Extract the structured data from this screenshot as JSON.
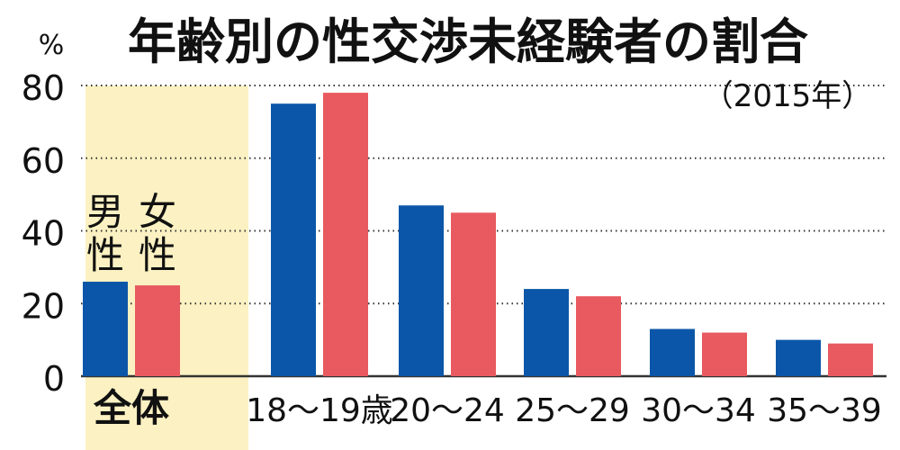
{
  "chart_data": {
    "type": "bar",
    "title": "年齢別の性交渉未経験者の割合",
    "subtitle": "（2015年）",
    "ylabel": "%",
    "ylim": [
      0,
      80
    ],
    "y_ticks": [
      0,
      20,
      40,
      60,
      80
    ],
    "grid": true,
    "grid_style": "dotted",
    "categories": [
      "全体",
      "18～19歳",
      "20～24",
      "25～29",
      "30～34",
      "35～39"
    ],
    "series": [
      {
        "name": "男性",
        "color": "#0b56a8",
        "values": [
          26,
          75,
          47,
          24,
          13,
          10
        ]
      },
      {
        "name": "女性",
        "color": "#e85a5f",
        "values": [
          25,
          78,
          45,
          22,
          12,
          9
        ]
      }
    ],
    "legend": {
      "placement": "inside-first-category",
      "male_lines": [
        "男",
        "性"
      ],
      "female_lines": [
        "女",
        "性"
      ]
    },
    "highlight": {
      "category_index": 0,
      "color": "#fbf1c2"
    }
  }
}
